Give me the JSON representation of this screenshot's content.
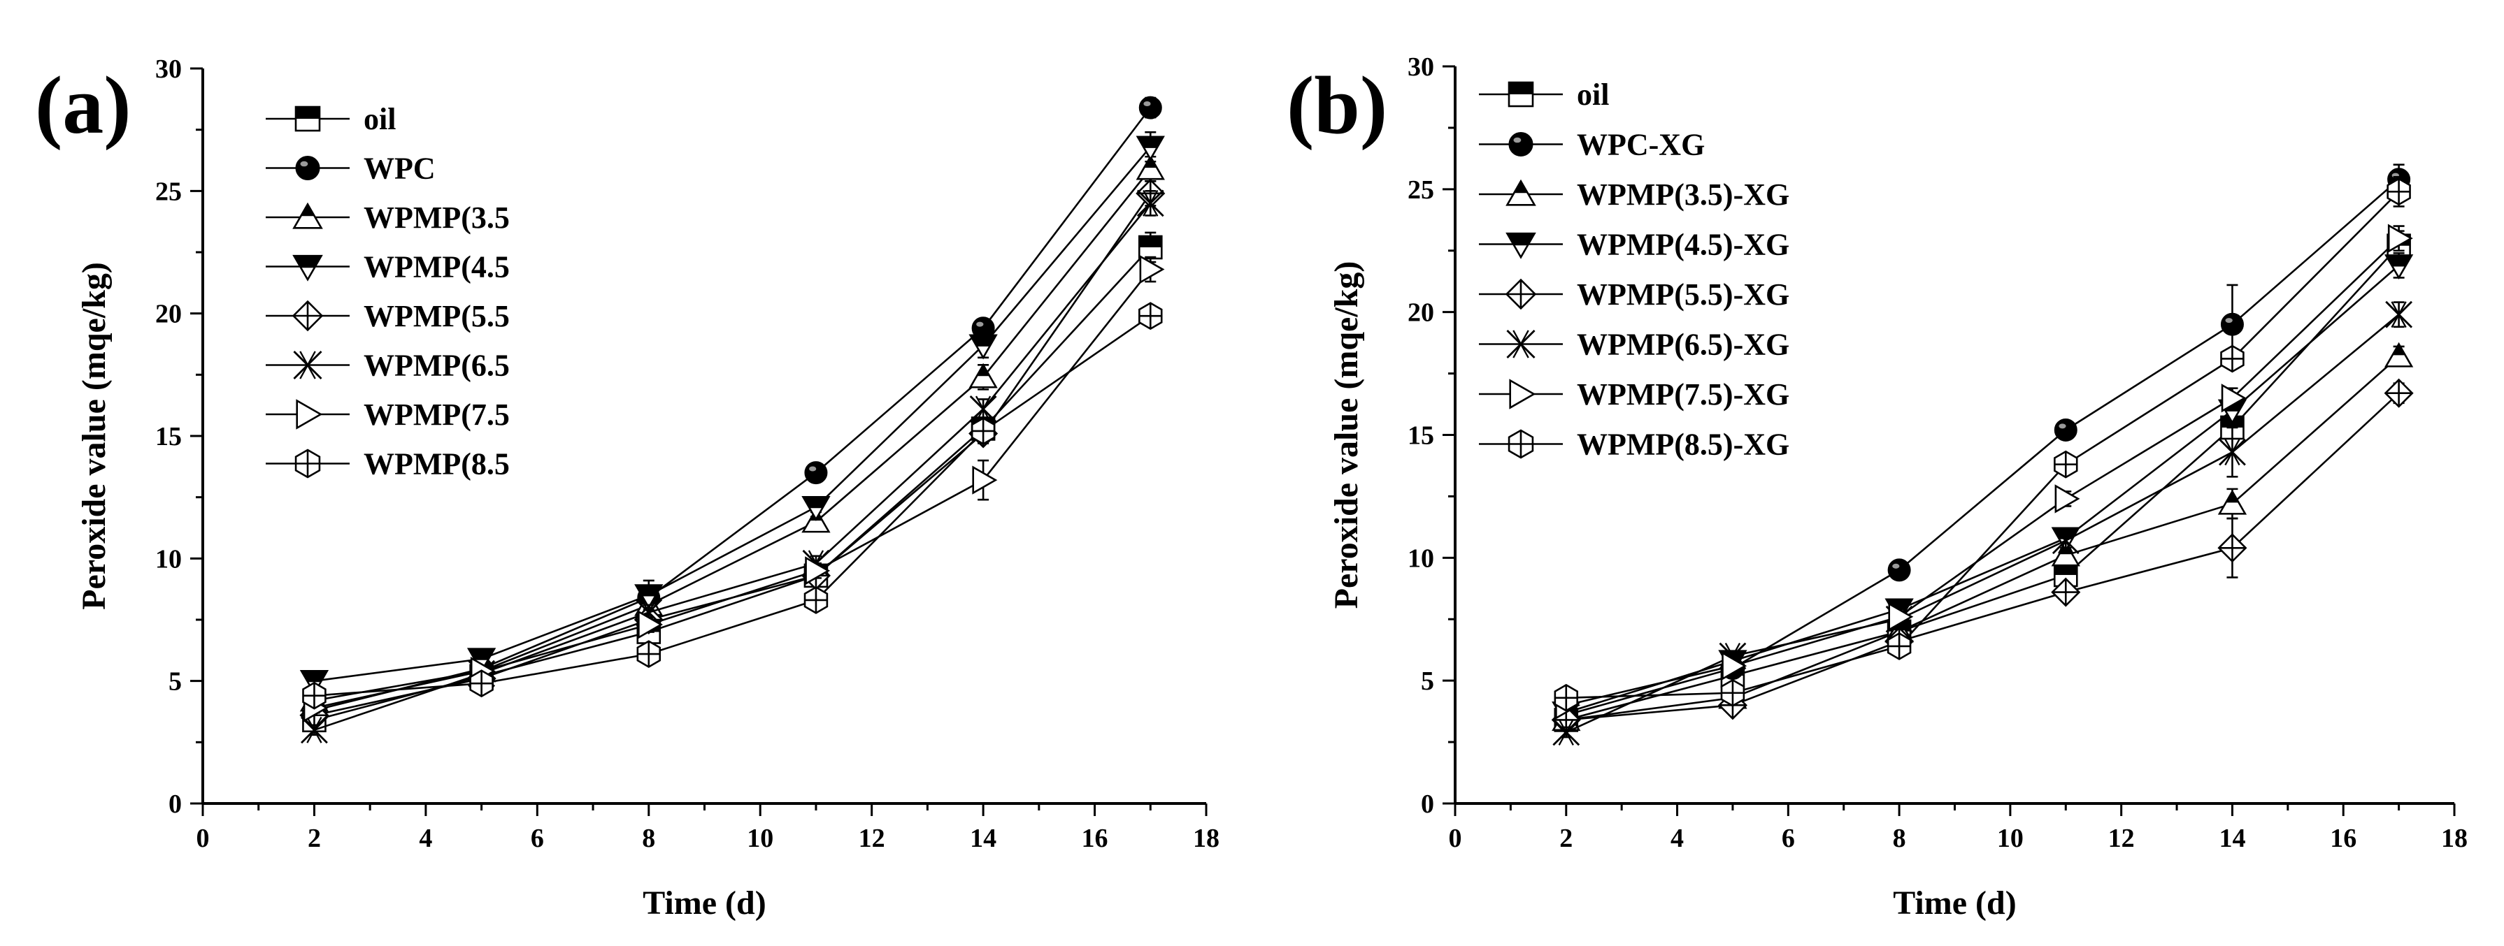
{
  "chart_data": [
    {
      "type": "line",
      "panel_label": "(a)",
      "xlabel": "Time (d)",
      "ylabel": "Peroxide value (mqe/kg)",
      "xlim": [
        0,
        18
      ],
      "ylim": [
        0,
        30
      ],
      "xticks": [
        0,
        2,
        4,
        6,
        8,
        10,
        12,
        14,
        16,
        18
      ],
      "yticks": [
        0,
        5,
        10,
        15,
        20,
        25,
        30
      ],
      "legend_position": "top-left",
      "x": [
        2,
        5,
        8,
        11,
        14,
        17
      ],
      "series": [
        {
          "name": "oil",
          "marker": "half-square",
          "values": [
            3.4,
            5.2,
            7.0,
            9.3,
            15.3,
            22.7
          ],
          "errors": [
            0.2,
            0.2,
            0.3,
            0.3,
            0.4,
            0.6
          ]
        },
        {
          "name": "WPC",
          "marker": "sphere",
          "values": [
            3.8,
            5.5,
            8.4,
            13.5,
            19.4,
            28.4
          ],
          "errors": [
            0.2,
            0.2,
            0.3,
            0.3,
            0.3,
            0.4
          ]
        },
        {
          "name": "WPMP(3.5",
          "marker": "half-triangle-up",
          "values": [
            4.2,
            5.4,
            8.1,
            11.5,
            17.4,
            25.9
          ],
          "errors": [
            0.2,
            0.2,
            0.3,
            0.4,
            0.5,
            0.5
          ]
        },
        {
          "name": "WPMP(4.5",
          "marker": "half-triangle-down",
          "values": [
            5.0,
            5.9,
            8.5,
            12.1,
            18.7,
            26.8
          ],
          "errors": [
            0.2,
            0.2,
            0.6,
            0.4,
            0.5,
            0.6
          ]
        },
        {
          "name": "WPMP(5.5",
          "marker": "crossed-diamond",
          "values": [
            3.6,
            5.1,
            7.5,
            9.3,
            15.1,
            24.9
          ],
          "errors": [
            0.2,
            0.2,
            0.3,
            0.3,
            0.4,
            0.5
          ]
        },
        {
          "name": "WPMP(6.5",
          "marker": "star-x",
          "values": [
            3.0,
            5.3,
            7.8,
            9.8,
            16.1,
            24.5
          ],
          "errors": [
            0.2,
            0.2,
            0.3,
            0.3,
            0.4,
            0.5
          ]
        },
        {
          "name": "WPMP(7.5",
          "marker": "triangle-right",
          "values": [
            3.9,
            5.4,
            7.3,
            9.5,
            13.2,
            21.8
          ],
          "errors": [
            0.2,
            0.2,
            0.3,
            0.3,
            0.8,
            0.5
          ]
        },
        {
          "name": "WPMP(8.5",
          "marker": "crossed-hexagon",
          "values": [
            4.4,
            4.9,
            6.1,
            8.3,
            15.2,
            19.9
          ],
          "errors": [
            0.2,
            0.2,
            0.3,
            0.3,
            0.4,
            0.4
          ]
        }
      ]
    },
    {
      "type": "line",
      "panel_label": "(b)",
      "xlabel": "Time (d)",
      "ylabel": "Peroxide value (mqe/kg)",
      "xlim": [
        0,
        18
      ],
      "ylim": [
        0,
        30
      ],
      "xticks": [
        0,
        2,
        4,
        6,
        8,
        10,
        12,
        14,
        16,
        18
      ],
      "yticks": [
        0,
        5,
        10,
        15,
        20,
        25,
        30
      ],
      "legend_position": "top-left",
      "x": [
        2,
        5,
        8,
        11,
        14,
        17
      ],
      "series": [
        {
          "name": "oil",
          "marker": "half-square",
          "values": [
            3.4,
            5.2,
            7.0,
            9.3,
            15.3,
            22.7
          ],
          "errors": [
            0.2,
            0.2,
            0.3,
            0.3,
            0.4,
            0.6
          ]
        },
        {
          "name": "WPC-XG",
          "marker": "sphere",
          "values": [
            3.6,
            5.5,
            9.5,
            15.2,
            19.5,
            25.4
          ],
          "errors": [
            0.2,
            0.2,
            0.3,
            0.3,
            1.6,
            0.6
          ]
        },
        {
          "name": "WPMP(3.5)-XG",
          "marker": "half-triangle-up",
          "values": [
            3.4,
            4.3,
            7.0,
            10.1,
            12.2,
            18.2
          ],
          "errors": [
            0.2,
            0.2,
            0.3,
            0.3,
            0.6,
            0.4
          ]
        },
        {
          "name": "WPMP(4.5)-XG",
          "marker": "half-triangle-down",
          "values": [
            3.7,
            5.8,
            7.9,
            10.8,
            16.0,
            21.9
          ],
          "errors": [
            0.2,
            0.2,
            0.3,
            0.3,
            0.4,
            0.5
          ]
        },
        {
          "name": "WPMP(5.5)-XG",
          "marker": "crossed-diamond",
          "values": [
            3.4,
            4.0,
            6.6,
            8.6,
            10.4,
            16.7
          ],
          "errors": [
            0.2,
            0.2,
            0.3,
            0.3,
            1.2,
            0.4
          ]
        },
        {
          "name": "WPMP(6.5)-XG",
          "marker": "star-x",
          "values": [
            2.9,
            6.0,
            7.5,
            10.7,
            14.3,
            19.9
          ],
          "errors": [
            0.2,
            0.2,
            0.3,
            0.3,
            1.0,
            0.5
          ]
        },
        {
          "name": "WPMP(7.5)-XG",
          "marker": "triangle-right",
          "values": [
            4.0,
            5.6,
            7.6,
            12.4,
            16.5,
            23.0
          ],
          "errors": [
            0.2,
            0.2,
            0.3,
            0.3,
            0.4,
            0.5
          ]
        },
        {
          "name": "WPMP(8.5)-XG",
          "marker": "crossed-hexagon",
          "values": [
            4.3,
            4.5,
            6.4,
            13.8,
            18.1,
            24.9
          ],
          "errors": [
            0.2,
            0.2,
            0.3,
            0.3,
            0.4,
            0.6
          ]
        }
      ]
    }
  ]
}
